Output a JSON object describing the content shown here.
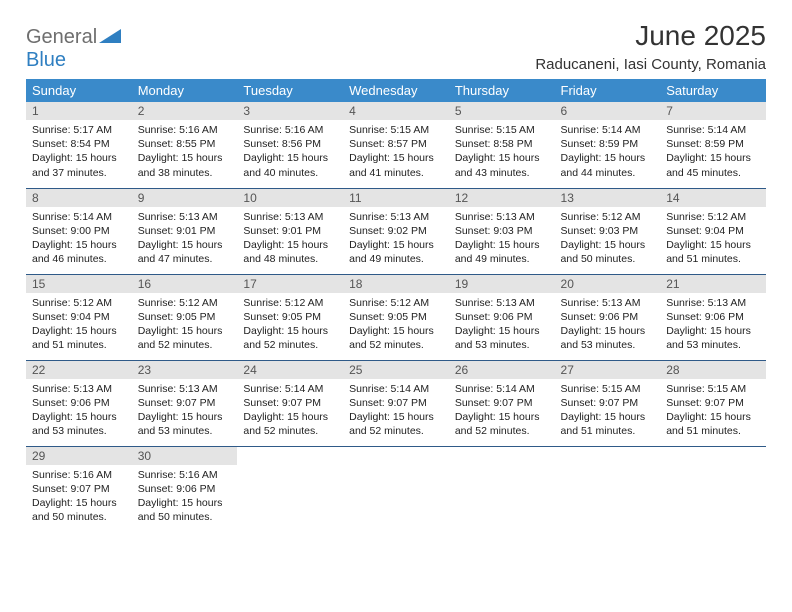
{
  "logo": {
    "general": "General",
    "blue": "Blue"
  },
  "title": "June 2025",
  "subtitle": "Raducaneni, Iasi County, Romania",
  "colors": {
    "header_bg": "#3a8aca",
    "header_text": "#ffffff",
    "daynum_bg": "#e4e4e4",
    "daynum_text": "#555555",
    "cell_border": "#2f5a88",
    "title_text": "#333333",
    "body_text": "#222222",
    "logo_gray": "#6e6e6e",
    "logo_blue": "#2f7fc1",
    "page_bg": "#ffffff"
  },
  "weekdays": [
    "Sunday",
    "Monday",
    "Tuesday",
    "Wednesday",
    "Thursday",
    "Friday",
    "Saturday"
  ],
  "days": [
    {
      "n": 1,
      "sunrise": "5:17 AM",
      "sunset": "8:54 PM",
      "daylight": "15 hours and 37 minutes."
    },
    {
      "n": 2,
      "sunrise": "5:16 AM",
      "sunset": "8:55 PM",
      "daylight": "15 hours and 38 minutes."
    },
    {
      "n": 3,
      "sunrise": "5:16 AM",
      "sunset": "8:56 PM",
      "daylight": "15 hours and 40 minutes."
    },
    {
      "n": 4,
      "sunrise": "5:15 AM",
      "sunset": "8:57 PM",
      "daylight": "15 hours and 41 minutes."
    },
    {
      "n": 5,
      "sunrise": "5:15 AM",
      "sunset": "8:58 PM",
      "daylight": "15 hours and 43 minutes."
    },
    {
      "n": 6,
      "sunrise": "5:14 AM",
      "sunset": "8:59 PM",
      "daylight": "15 hours and 44 minutes."
    },
    {
      "n": 7,
      "sunrise": "5:14 AM",
      "sunset": "8:59 PM",
      "daylight": "15 hours and 45 minutes."
    },
    {
      "n": 8,
      "sunrise": "5:14 AM",
      "sunset": "9:00 PM",
      "daylight": "15 hours and 46 minutes."
    },
    {
      "n": 9,
      "sunrise": "5:13 AM",
      "sunset": "9:01 PM",
      "daylight": "15 hours and 47 minutes."
    },
    {
      "n": 10,
      "sunrise": "5:13 AM",
      "sunset": "9:01 PM",
      "daylight": "15 hours and 48 minutes."
    },
    {
      "n": 11,
      "sunrise": "5:13 AM",
      "sunset": "9:02 PM",
      "daylight": "15 hours and 49 minutes."
    },
    {
      "n": 12,
      "sunrise": "5:13 AM",
      "sunset": "9:03 PM",
      "daylight": "15 hours and 49 minutes."
    },
    {
      "n": 13,
      "sunrise": "5:12 AM",
      "sunset": "9:03 PM",
      "daylight": "15 hours and 50 minutes."
    },
    {
      "n": 14,
      "sunrise": "5:12 AM",
      "sunset": "9:04 PM",
      "daylight": "15 hours and 51 minutes."
    },
    {
      "n": 15,
      "sunrise": "5:12 AM",
      "sunset": "9:04 PM",
      "daylight": "15 hours and 51 minutes."
    },
    {
      "n": 16,
      "sunrise": "5:12 AM",
      "sunset": "9:05 PM",
      "daylight": "15 hours and 52 minutes."
    },
    {
      "n": 17,
      "sunrise": "5:12 AM",
      "sunset": "9:05 PM",
      "daylight": "15 hours and 52 minutes."
    },
    {
      "n": 18,
      "sunrise": "5:12 AM",
      "sunset": "9:05 PM",
      "daylight": "15 hours and 52 minutes."
    },
    {
      "n": 19,
      "sunrise": "5:13 AM",
      "sunset": "9:06 PM",
      "daylight": "15 hours and 53 minutes."
    },
    {
      "n": 20,
      "sunrise": "5:13 AM",
      "sunset": "9:06 PM",
      "daylight": "15 hours and 53 minutes."
    },
    {
      "n": 21,
      "sunrise": "5:13 AM",
      "sunset": "9:06 PM",
      "daylight": "15 hours and 53 minutes."
    },
    {
      "n": 22,
      "sunrise": "5:13 AM",
      "sunset": "9:06 PM",
      "daylight": "15 hours and 53 minutes."
    },
    {
      "n": 23,
      "sunrise": "5:13 AM",
      "sunset": "9:07 PM",
      "daylight": "15 hours and 53 minutes."
    },
    {
      "n": 24,
      "sunrise": "5:14 AM",
      "sunset": "9:07 PM",
      "daylight": "15 hours and 52 minutes."
    },
    {
      "n": 25,
      "sunrise": "5:14 AM",
      "sunset": "9:07 PM",
      "daylight": "15 hours and 52 minutes."
    },
    {
      "n": 26,
      "sunrise": "5:14 AM",
      "sunset": "9:07 PM",
      "daylight": "15 hours and 52 minutes."
    },
    {
      "n": 27,
      "sunrise": "5:15 AM",
      "sunset": "9:07 PM",
      "daylight": "15 hours and 51 minutes."
    },
    {
      "n": 28,
      "sunrise": "5:15 AM",
      "sunset": "9:07 PM",
      "daylight": "15 hours and 51 minutes."
    },
    {
      "n": 29,
      "sunrise": "5:16 AM",
      "sunset": "9:07 PM",
      "daylight": "15 hours and 50 minutes."
    },
    {
      "n": 30,
      "sunrise": "5:16 AM",
      "sunset": "9:06 PM",
      "daylight": "15 hours and 50 minutes."
    }
  ],
  "labels": {
    "sunrise": "Sunrise: ",
    "sunset": "Sunset: ",
    "daylight": "Daylight: "
  }
}
